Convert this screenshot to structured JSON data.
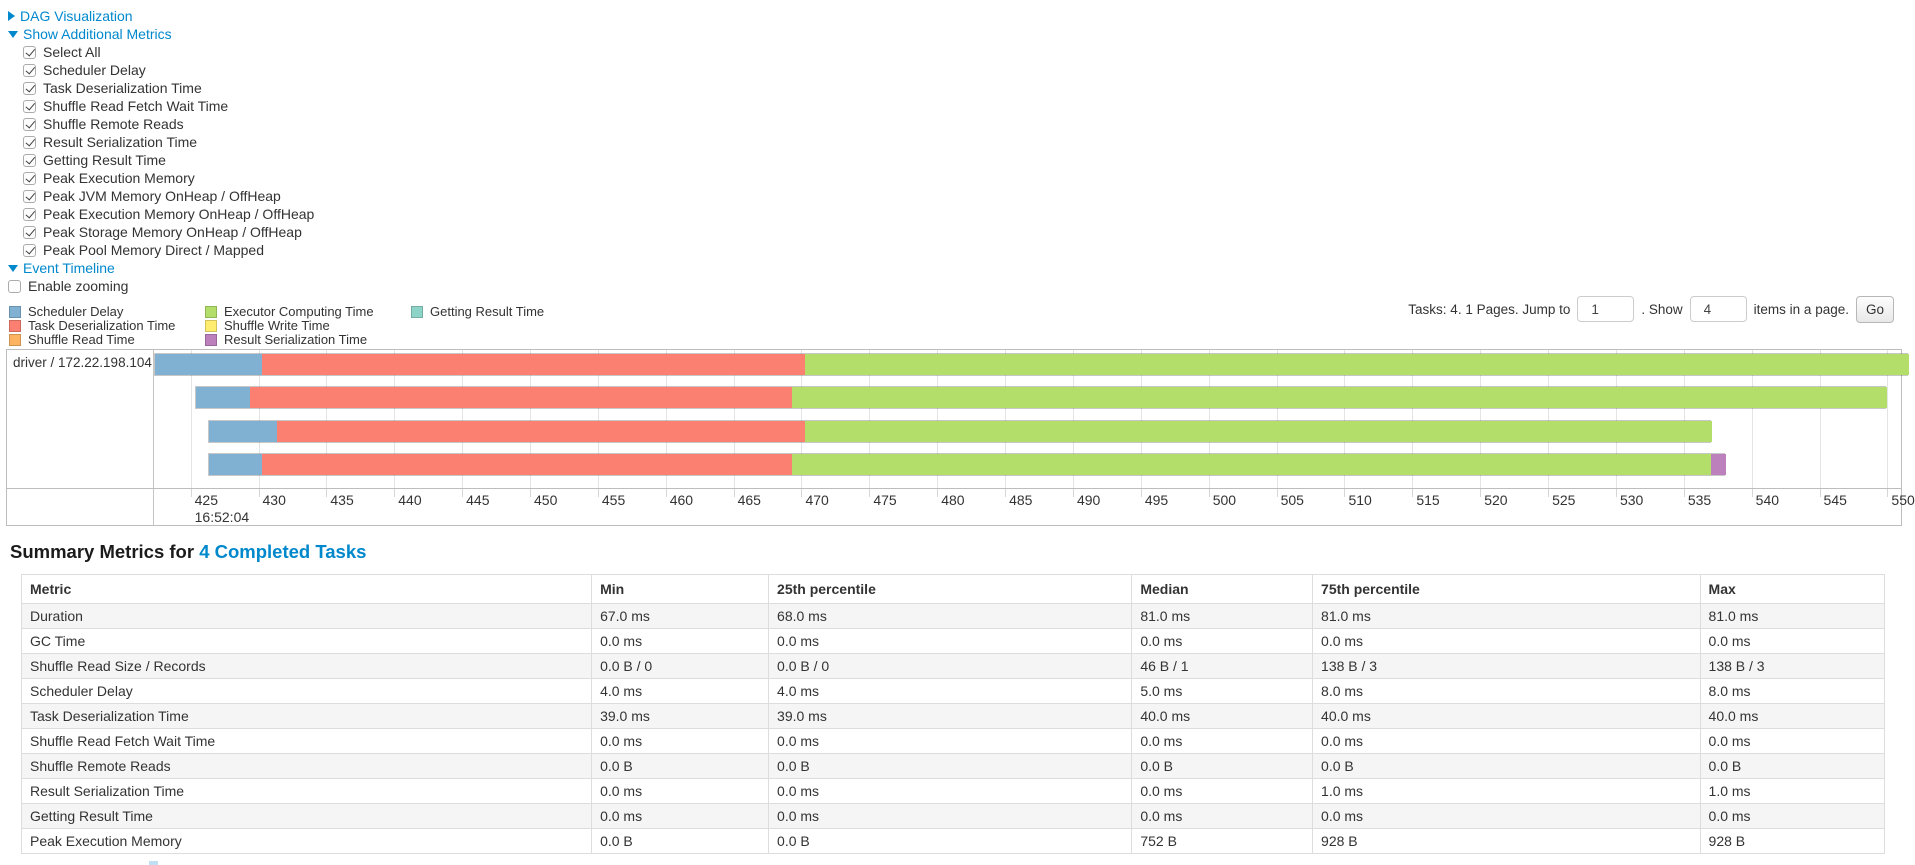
{
  "colors": {
    "link": "#0088cc",
    "scheduler_delay": "#80B1D3",
    "task_deserialization": "#FB8072",
    "shuffle_read": "#FDB462",
    "executor_computing": "#B3DE69",
    "shuffle_write": "#FFED6F",
    "result_serialization": "#BC80BD",
    "getting_result": "#8DD3C7"
  },
  "icons": {
    "dag_toggle": "triangle-right-icon",
    "metrics_toggle": "triangle-down-icon",
    "timeline_toggle": "triangle-down-icon"
  },
  "controls": {
    "dag_label": "DAG Visualization",
    "metrics_label": "Show Additional Metrics",
    "timeline_label": "Event Timeline",
    "enable_zooming_label": "Enable zooming",
    "enable_zooming_checked": false,
    "metric_checkboxes": [
      {
        "label": "Select All",
        "checked": true
      },
      {
        "label": "Scheduler Delay",
        "checked": true
      },
      {
        "label": "Task Deserialization Time",
        "checked": true
      },
      {
        "label": "Shuffle Read Fetch Wait Time",
        "checked": true
      },
      {
        "label": "Shuffle Remote Reads",
        "checked": true
      },
      {
        "label": "Result Serialization Time",
        "checked": true
      },
      {
        "label": "Getting Result Time",
        "checked": true
      },
      {
        "label": "Peak Execution Memory",
        "checked": true
      },
      {
        "label": "Peak JVM Memory OnHeap / OffHeap",
        "checked": true
      },
      {
        "label": "Peak Execution Memory OnHeap / OffHeap",
        "checked": true
      },
      {
        "label": "Peak Storage Memory OnHeap / OffHeap",
        "checked": true
      },
      {
        "label": "Peak Pool Memory Direct / Mapped",
        "checked": true
      }
    ]
  },
  "legend": {
    "items": [
      {
        "label": "Scheduler Delay",
        "color": "#80B1D3"
      },
      {
        "label": "Task Deserialization Time",
        "color": "#FB8072"
      },
      {
        "label": "Shuffle Read Time",
        "color": "#FDB462"
      },
      {
        "label": "Executor Computing Time",
        "color": "#B3DE69"
      },
      {
        "label": "Shuffle Write Time",
        "color": "#FFED6F"
      },
      {
        "label": "Result Serialization Time",
        "color": "#BC80BD"
      },
      {
        "label": "Getting Result Time",
        "color": "#8DD3C7"
      }
    ]
  },
  "pagination": {
    "summary_text": "Tasks: 4. 1 Pages. Jump to",
    "jump_value": "1",
    "mid_text": ". Show",
    "show_value": "4",
    "suffix_text": "items in a page.",
    "go_label": "Go"
  },
  "chart_data": {
    "type": "timeline",
    "row_label": "driver / 172.22.198.104",
    "axis": {
      "unit": "ms after anchor time",
      "anchor_time_label": "16:52:04",
      "anchor_tick": 425,
      "tick_start": 425,
      "tick_end": 550,
      "tick_step": 5,
      "domain_ms": [
        422.3,
        551.0
      ]
    },
    "tasks": [
      {
        "name": "task-bar-1",
        "segments": [
          {
            "type": "scheduler_delay",
            "start": 422.3,
            "end": 430.2
          },
          {
            "type": "task_deserialization",
            "start": 430.2,
            "end": 470.2
          },
          {
            "type": "executor_computing",
            "start": 470.2,
            "end": 551.5
          }
        ]
      },
      {
        "name": "task-bar-2",
        "segments": [
          {
            "type": "scheduler_delay",
            "start": 425.3,
            "end": 429.3
          },
          {
            "type": "task_deserialization",
            "start": 429.3,
            "end": 469.2
          },
          {
            "type": "executor_computing",
            "start": 469.2,
            "end": 549.9
          }
        ]
      },
      {
        "name": "task-bar-3",
        "segments": [
          {
            "type": "scheduler_delay",
            "start": 426.3,
            "end": 431.3
          },
          {
            "type": "task_deserialization",
            "start": 431.3,
            "end": 470.2
          },
          {
            "type": "executor_computing",
            "start": 470.2,
            "end": 537.0
          }
        ]
      },
      {
        "name": "task-bar-4",
        "segments": [
          {
            "type": "scheduler_delay",
            "start": 426.3,
            "end": 430.2
          },
          {
            "type": "task_deserialization",
            "start": 430.2,
            "end": 469.2
          },
          {
            "type": "executor_computing",
            "start": 469.2,
            "end": 536.9
          },
          {
            "type": "result_serialization",
            "start": 536.9,
            "end": 538.0
          }
        ]
      }
    ]
  },
  "summary_section": {
    "title_prefix": "Summary Metrics for ",
    "title_link": "4 Completed Tasks"
  },
  "summary_table": {
    "headers": [
      "Metric",
      "Min",
      "25th percentile",
      "Median",
      "75th percentile",
      "Max"
    ],
    "rows": [
      {
        "metric": "Duration",
        "values": [
          "67.0 ms",
          "68.0 ms",
          "81.0 ms",
          "81.0 ms",
          "81.0 ms"
        ]
      },
      {
        "metric": "GC Time",
        "values": [
          "0.0 ms",
          "0.0 ms",
          "0.0 ms",
          "0.0 ms",
          "0.0 ms"
        ]
      },
      {
        "metric": "Shuffle Read Size / Records",
        "values": [
          "0.0 B / 0",
          "0.0 B / 0",
          "46 B / 1",
          "138 B / 3",
          "138 B / 3"
        ]
      },
      {
        "metric": "Scheduler Delay",
        "values": [
          "4.0 ms",
          "4.0 ms",
          "5.0 ms",
          "8.0 ms",
          "8.0 ms"
        ]
      },
      {
        "metric": "Task Deserialization Time",
        "values": [
          "39.0 ms",
          "39.0 ms",
          "40.0 ms",
          "40.0 ms",
          "40.0 ms"
        ]
      },
      {
        "metric": "Shuffle Read Fetch Wait Time",
        "values": [
          "0.0 ms",
          "0.0 ms",
          "0.0 ms",
          "0.0 ms",
          "0.0 ms"
        ]
      },
      {
        "metric": "Shuffle Remote Reads",
        "values": [
          "0.0 B",
          "0.0 B",
          "0.0 B",
          "0.0 B",
          "0.0 B"
        ]
      },
      {
        "metric": "Result Serialization Time",
        "values": [
          "0.0 ms",
          "0.0 ms",
          "0.0 ms",
          "1.0 ms",
          "1.0 ms"
        ]
      },
      {
        "metric": "Getting Result Time",
        "values": [
          "0.0 ms",
          "0.0 ms",
          "0.0 ms",
          "0.0 ms",
          "0.0 ms"
        ]
      },
      {
        "metric": "Peak Execution Memory",
        "values": [
          "0.0 B",
          "0.0 B",
          "752 B",
          "928 B",
          "928 B"
        ]
      }
    ]
  }
}
